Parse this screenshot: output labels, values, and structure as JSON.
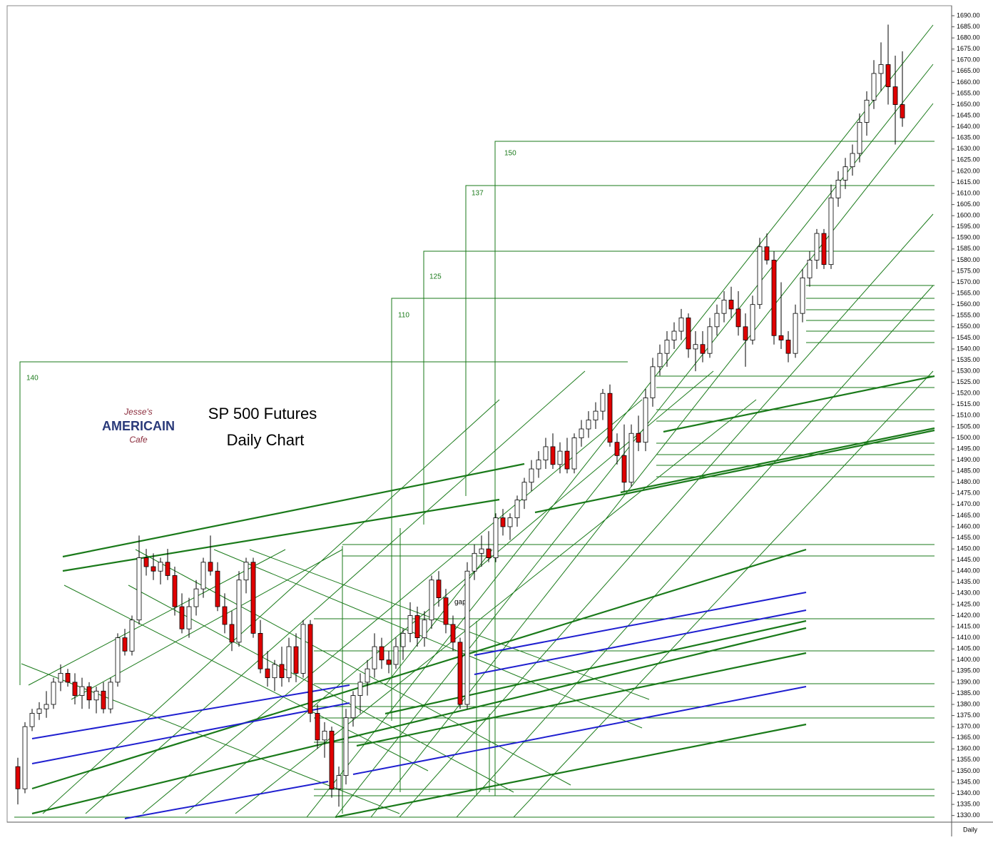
{
  "chart_data": {
    "type": "candlestick",
    "title": "SP 500 Futures",
    "subtitle": "Daily Chart",
    "period_label": "Daily",
    "logo": [
      "Jesse's",
      "AMERICAIN",
      "Cafe"
    ],
    "annotations": [
      "140",
      "110",
      "125",
      "137",
      "150",
      "gap"
    ],
    "up_color": "#ffffff",
    "down_color": "#e00000",
    "ylim": [
      1327,
      1694.5
    ],
    "yticks": [
      {
        "value": 1330,
        "label": "1330.00"
      },
      {
        "value": 1335,
        "label": "1335.00"
      },
      {
        "value": 1340,
        "label": "1340.00"
      },
      {
        "value": 1345,
        "label": "1345.00"
      },
      {
        "value": 1350,
        "label": "1350.00"
      },
      {
        "value": 1355,
        "label": "1355.00"
      },
      {
        "value": 1360,
        "label": "1360.00"
      },
      {
        "value": 1365,
        "label": "1365.00"
      },
      {
        "value": 1370,
        "label": "1370.00"
      },
      {
        "value": 1375,
        "label": "1375.00"
      },
      {
        "value": 1380,
        "label": "1380.00"
      },
      {
        "value": 1385,
        "label": "1385.00"
      },
      {
        "value": 1390,
        "label": "1390.00"
      },
      {
        "value": 1395,
        "label": "1395.00"
      },
      {
        "value": 1400,
        "label": "1400.00"
      },
      {
        "value": 1405,
        "label": "1405.00"
      },
      {
        "value": 1410,
        "label": "1410.00"
      },
      {
        "value": 1415,
        "label": "1415.00"
      },
      {
        "value": 1420,
        "label": "1420.00"
      },
      {
        "value": 1425,
        "label": "1425.00"
      },
      {
        "value": 1430,
        "label": "1430.00"
      },
      {
        "value": 1435,
        "label": "1435.00"
      },
      {
        "value": 1440,
        "label": "1440.00"
      },
      {
        "value": 1445,
        "label": "1445.00"
      },
      {
        "value": 1450,
        "label": "1450.00"
      },
      {
        "value": 1455,
        "label": "1455.00"
      },
      {
        "value": 1460,
        "label": "1460.00"
      },
      {
        "value": 1465,
        "label": "1465.00"
      },
      {
        "value": 1470,
        "label": "1470.00"
      },
      {
        "value": 1475,
        "label": "1475.00"
      },
      {
        "value": 1480,
        "label": "1480.00"
      },
      {
        "value": 1485,
        "label": "1485.00"
      },
      {
        "value": 1490,
        "label": "1490.00"
      },
      {
        "value": 1495,
        "label": "1495.00"
      },
      {
        "value": 1500,
        "label": "1500.00"
      },
      {
        "value": 1505,
        "label": "1505.00"
      },
      {
        "value": 1510,
        "label": "1510.00"
      },
      {
        "value": 1515,
        "label": "1515.00"
      },
      {
        "value": 1520,
        "label": "1520.00"
      },
      {
        "value": 1525,
        "label": "1525.00"
      },
      {
        "value": 1530,
        "label": "1530.00"
      },
      {
        "value": 1535,
        "label": "1535.00"
      },
      {
        "value": 1540,
        "label": "1540.00"
      },
      {
        "value": 1545,
        "label": "1545.00"
      },
      {
        "value": 1550,
        "label": "1550.00"
      },
      {
        "value": 1555,
        "label": "1555.00"
      },
      {
        "value": 1560,
        "label": "1560.00"
      },
      {
        "value": 1565,
        "label": "1565.00"
      },
      {
        "value": 1570,
        "label": "1570.00"
      },
      {
        "value": 1575,
        "label": "1575.00"
      },
      {
        "value": 1580,
        "label": "1580.00"
      },
      {
        "value": 1585,
        "label": "1585.00"
      },
      {
        "value": 1590,
        "label": "1590.00"
      },
      {
        "value": 1595,
        "label": "1595.00"
      },
      {
        "value": 1600,
        "label": "1600.00"
      },
      {
        "value": 1605,
        "label": "1605.00"
      },
      {
        "value": 1610,
        "label": "1610.00"
      },
      {
        "value": 1615,
        "label": "1615.00"
      },
      {
        "value": 1620,
        "label": "1620.00"
      },
      {
        "value": 1625,
        "label": "1625.00"
      },
      {
        "value": 1630,
        "label": "1630.00"
      },
      {
        "value": 1635,
        "label": "1635.00"
      },
      {
        "value": 1640,
        "label": "1640.00"
      },
      {
        "value": 1645,
        "label": "1645.00"
      },
      {
        "value": 1650,
        "label": "1650.00"
      },
      {
        "value": 1655,
        "label": "1655.00"
      },
      {
        "value": 1660,
        "label": "1660.00"
      },
      {
        "value": 1665,
        "label": "1665.00"
      },
      {
        "value": 1670,
        "label": "1670.00"
      },
      {
        "value": 1675,
        "label": "1675.00"
      },
      {
        "value": 1680,
        "label": "1680.00"
      },
      {
        "value": 1685,
        "label": "1685.00"
      },
      {
        "value": 1690,
        "label": "1690.00"
      }
    ],
    "ohlc": [
      [
        1352,
        1356,
        1335,
        1342
      ],
      [
        1342,
        1372,
        1340,
        1370
      ],
      [
        1370,
        1378,
        1368,
        1376
      ],
      [
        1376,
        1381,
        1373,
        1378
      ],
      [
        1378,
        1386,
        1374,
        1380
      ],
      [
        1380,
        1392,
        1378,
        1390
      ],
      [
        1390,
        1398,
        1386,
        1394
      ],
      [
        1394,
        1396,
        1388,
        1390
      ],
      [
        1390,
        1394,
        1380,
        1384
      ],
      [
        1384,
        1392,
        1378,
        1388
      ],
      [
        1388,
        1390,
        1378,
        1382
      ],
      [
        1382,
        1388,
        1376,
        1386
      ],
      [
        1386,
        1390,
        1376,
        1378
      ],
      [
        1378,
        1392,
        1376,
        1390
      ],
      [
        1390,
        1412,
        1388,
        1410
      ],
      [
        1410,
        1414,
        1402,
        1404
      ],
      [
        1404,
        1420,
        1402,
        1418
      ],
      [
        1418,
        1456,
        1416,
        1446
      ],
      [
        1446,
        1450,
        1438,
        1442
      ],
      [
        1442,
        1448,
        1436,
        1440
      ],
      [
        1440,
        1446,
        1434,
        1444
      ],
      [
        1444,
        1450,
        1436,
        1438
      ],
      [
        1438,
        1442,
        1420,
        1424
      ],
      [
        1424,
        1430,
        1412,
        1414
      ],
      [
        1414,
        1428,
        1410,
        1424
      ],
      [
        1424,
        1436,
        1420,
        1432
      ],
      [
        1432,
        1446,
        1428,
        1444
      ],
      [
        1444,
        1456,
        1438,
        1440
      ],
      [
        1440,
        1444,
        1422,
        1424
      ],
      [
        1424,
        1430,
        1412,
        1416
      ],
      [
        1416,
        1422,
        1404,
        1408
      ],
      [
        1408,
        1440,
        1406,
        1436
      ],
      [
        1436,
        1446,
        1430,
        1444
      ],
      [
        1444,
        1446,
        1410,
        1412
      ],
      [
        1412,
        1418,
        1394,
        1396
      ],
      [
        1396,
        1404,
        1388,
        1392
      ],
      [
        1392,
        1400,
        1386,
        1398
      ],
      [
        1398,
        1406,
        1388,
        1392
      ],
      [
        1392,
        1410,
        1390,
        1406
      ],
      [
        1406,
        1412,
        1390,
        1394
      ],
      [
        1394,
        1418,
        1392,
        1416
      ],
      [
        1416,
        1418,
        1372,
        1376
      ],
      [
        1376,
        1380,
        1360,
        1364
      ],
      [
        1364,
        1372,
        1356,
        1368
      ],
      [
        1368,
        1370,
        1338,
        1342
      ],
      [
        1342,
        1352,
        1334,
        1348
      ],
      [
        1348,
        1378,
        1344,
        1374
      ],
      [
        1374,
        1386,
        1370,
        1384
      ],
      [
        1384,
        1394,
        1376,
        1390
      ],
      [
        1390,
        1400,
        1384,
        1396
      ],
      [
        1396,
        1412,
        1392,
        1406
      ],
      [
        1406,
        1410,
        1396,
        1400
      ],
      [
        1400,
        1404,
        1394,
        1398
      ],
      [
        1398,
        1410,
        1396,
        1406
      ],
      [
        1406,
        1414,
        1400,
        1412
      ],
      [
        1412,
        1426,
        1408,
        1420
      ],
      [
        1420,
        1424,
        1406,
        1410
      ],
      [
        1410,
        1422,
        1406,
        1418
      ],
      [
        1418,
        1438,
        1414,
        1436
      ],
      [
        1436,
        1440,
        1424,
        1428
      ],
      [
        1428,
        1432,
        1412,
        1416
      ],
      [
        1416,
        1420,
        1404,
        1408
      ],
      [
        1408,
        1410,
        1378,
        1380
      ],
      [
        1380,
        1444,
        1378,
        1440
      ],
      [
        1440,
        1452,
        1436,
        1448
      ],
      [
        1448,
        1456,
        1442,
        1450
      ],
      [
        1450,
        1458,
        1444,
        1446
      ],
      [
        1446,
        1466,
        1444,
        1464
      ],
      [
        1464,
        1468,
        1456,
        1460
      ],
      [
        1460,
        1466,
        1454,
        1464
      ],
      [
        1464,
        1474,
        1460,
        1472
      ],
      [
        1472,
        1482,
        1468,
        1480
      ],
      [
        1480,
        1490,
        1476,
        1486
      ],
      [
        1486,
        1494,
        1482,
        1490
      ],
      [
        1490,
        1500,
        1486,
        1496
      ],
      [
        1496,
        1502,
        1486,
        1488
      ],
      [
        1488,
        1498,
        1484,
        1494
      ],
      [
        1494,
        1500,
        1484,
        1486
      ],
      [
        1486,
        1502,
        1484,
        1500
      ],
      [
        1500,
        1508,
        1496,
        1504
      ],
      [
        1504,
        1512,
        1500,
        1508
      ],
      [
        1508,
        1516,
        1504,
        1512
      ],
      [
        1512,
        1522,
        1508,
        1520
      ],
      [
        1520,
        1524,
        1496,
        1498
      ],
      [
        1498,
        1502,
        1488,
        1492
      ],
      [
        1492,
        1506,
        1476,
        1480
      ],
      [
        1480,
        1506,
        1478,
        1502
      ],
      [
        1502,
        1510,
        1494,
        1498
      ],
      [
        1498,
        1522,
        1494,
        1518
      ],
      [
        1518,
        1536,
        1514,
        1532
      ],
      [
        1532,
        1542,
        1528,
        1538
      ],
      [
        1538,
        1548,
        1532,
        1544
      ],
      [
        1544,
        1552,
        1540,
        1548
      ],
      [
        1548,
        1558,
        1544,
        1554
      ],
      [
        1554,
        1556,
        1536,
        1540
      ],
      [
        1540,
        1548,
        1530,
        1542
      ],
      [
        1542,
        1548,
        1534,
        1538
      ],
      [
        1538,
        1554,
        1536,
        1550
      ],
      [
        1550,
        1560,
        1546,
        1556
      ],
      [
        1556,
        1566,
        1552,
        1562
      ],
      [
        1562,
        1568,
        1554,
        1558
      ],
      [
        1558,
        1566,
        1546,
        1550
      ],
      [
        1550,
        1556,
        1532,
        1544
      ],
      [
        1544,
        1564,
        1542,
        1560
      ],
      [
        1560,
        1590,
        1558,
        1586
      ],
      [
        1586,
        1592,
        1578,
        1580
      ],
      [
        1580,
        1584,
        1542,
        1546
      ],
      [
        1546,
        1570,
        1540,
        1544
      ],
      [
        1544,
        1548,
        1534,
        1538
      ],
      [
        1538,
        1560,
        1536,
        1556
      ],
      [
        1556,
        1576,
        1552,
        1572
      ],
      [
        1572,
        1584,
        1568,
        1580
      ],
      [
        1580,
        1594,
        1576,
        1592
      ],
      [
        1592,
        1594,
        1576,
        1578
      ],
      [
        1578,
        1614,
        1576,
        1608
      ],
      [
        1608,
        1620,
        1604,
        1616
      ],
      [
        1616,
        1626,
        1612,
        1622
      ],
      [
        1622,
        1632,
        1618,
        1628
      ],
      [
        1628,
        1646,
        1624,
        1642
      ],
      [
        1642,
        1656,
        1636,
        1652
      ],
      [
        1652,
        1670,
        1648,
        1664
      ],
      [
        1664,
        1678,
        1656,
        1668
      ],
      [
        1668,
        1686,
        1650,
        1658
      ],
      [
        1658,
        1672,
        1632,
        1650
      ],
      [
        1650,
        1674,
        1640,
        1644
      ]
    ]
  }
}
